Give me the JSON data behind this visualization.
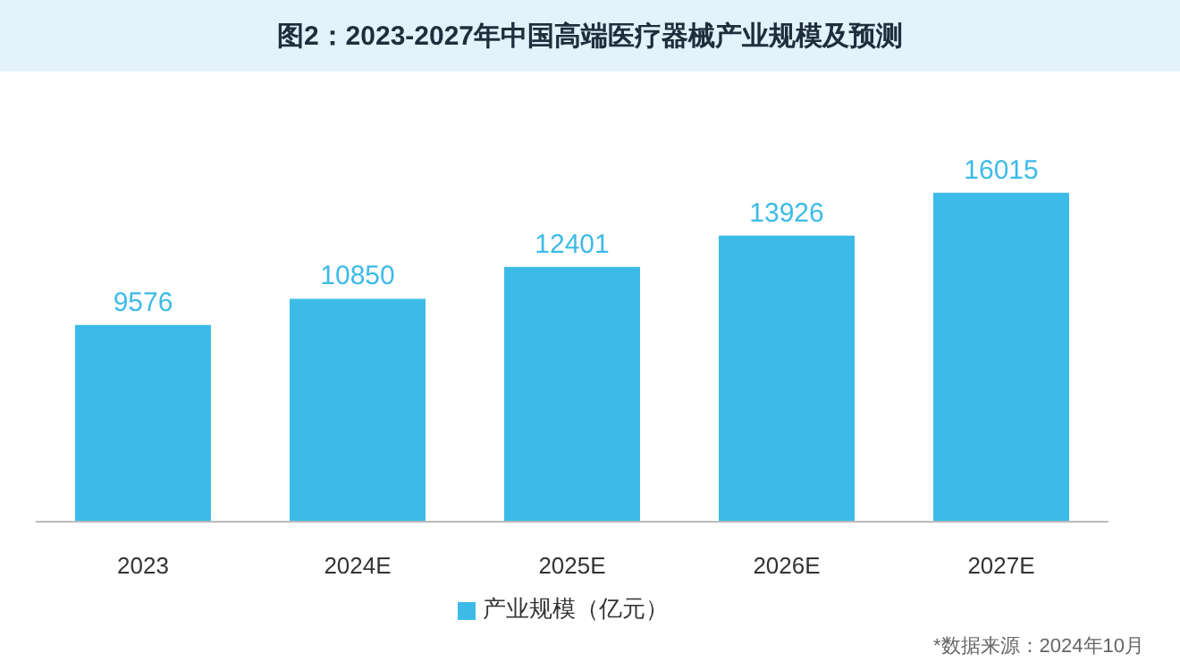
{
  "chart_data": {
    "type": "bar",
    "title": "图2：2023-2027年中国高端医疗器械产业规模及预测",
    "categories": [
      "2023",
      "2024E",
      "2025E",
      "2026E",
      "2027E"
    ],
    "series": [
      {
        "name": "产业规模（亿元）",
        "color": "#3dbbe8",
        "values": [
          9576,
          10850,
          12401,
          13926,
          16015
        ]
      }
    ],
    "data_labels": true,
    "legend": "bottom",
    "grid": false,
    "annotations": [
      "*数据来源：2024年10月"
    ]
  }
}
